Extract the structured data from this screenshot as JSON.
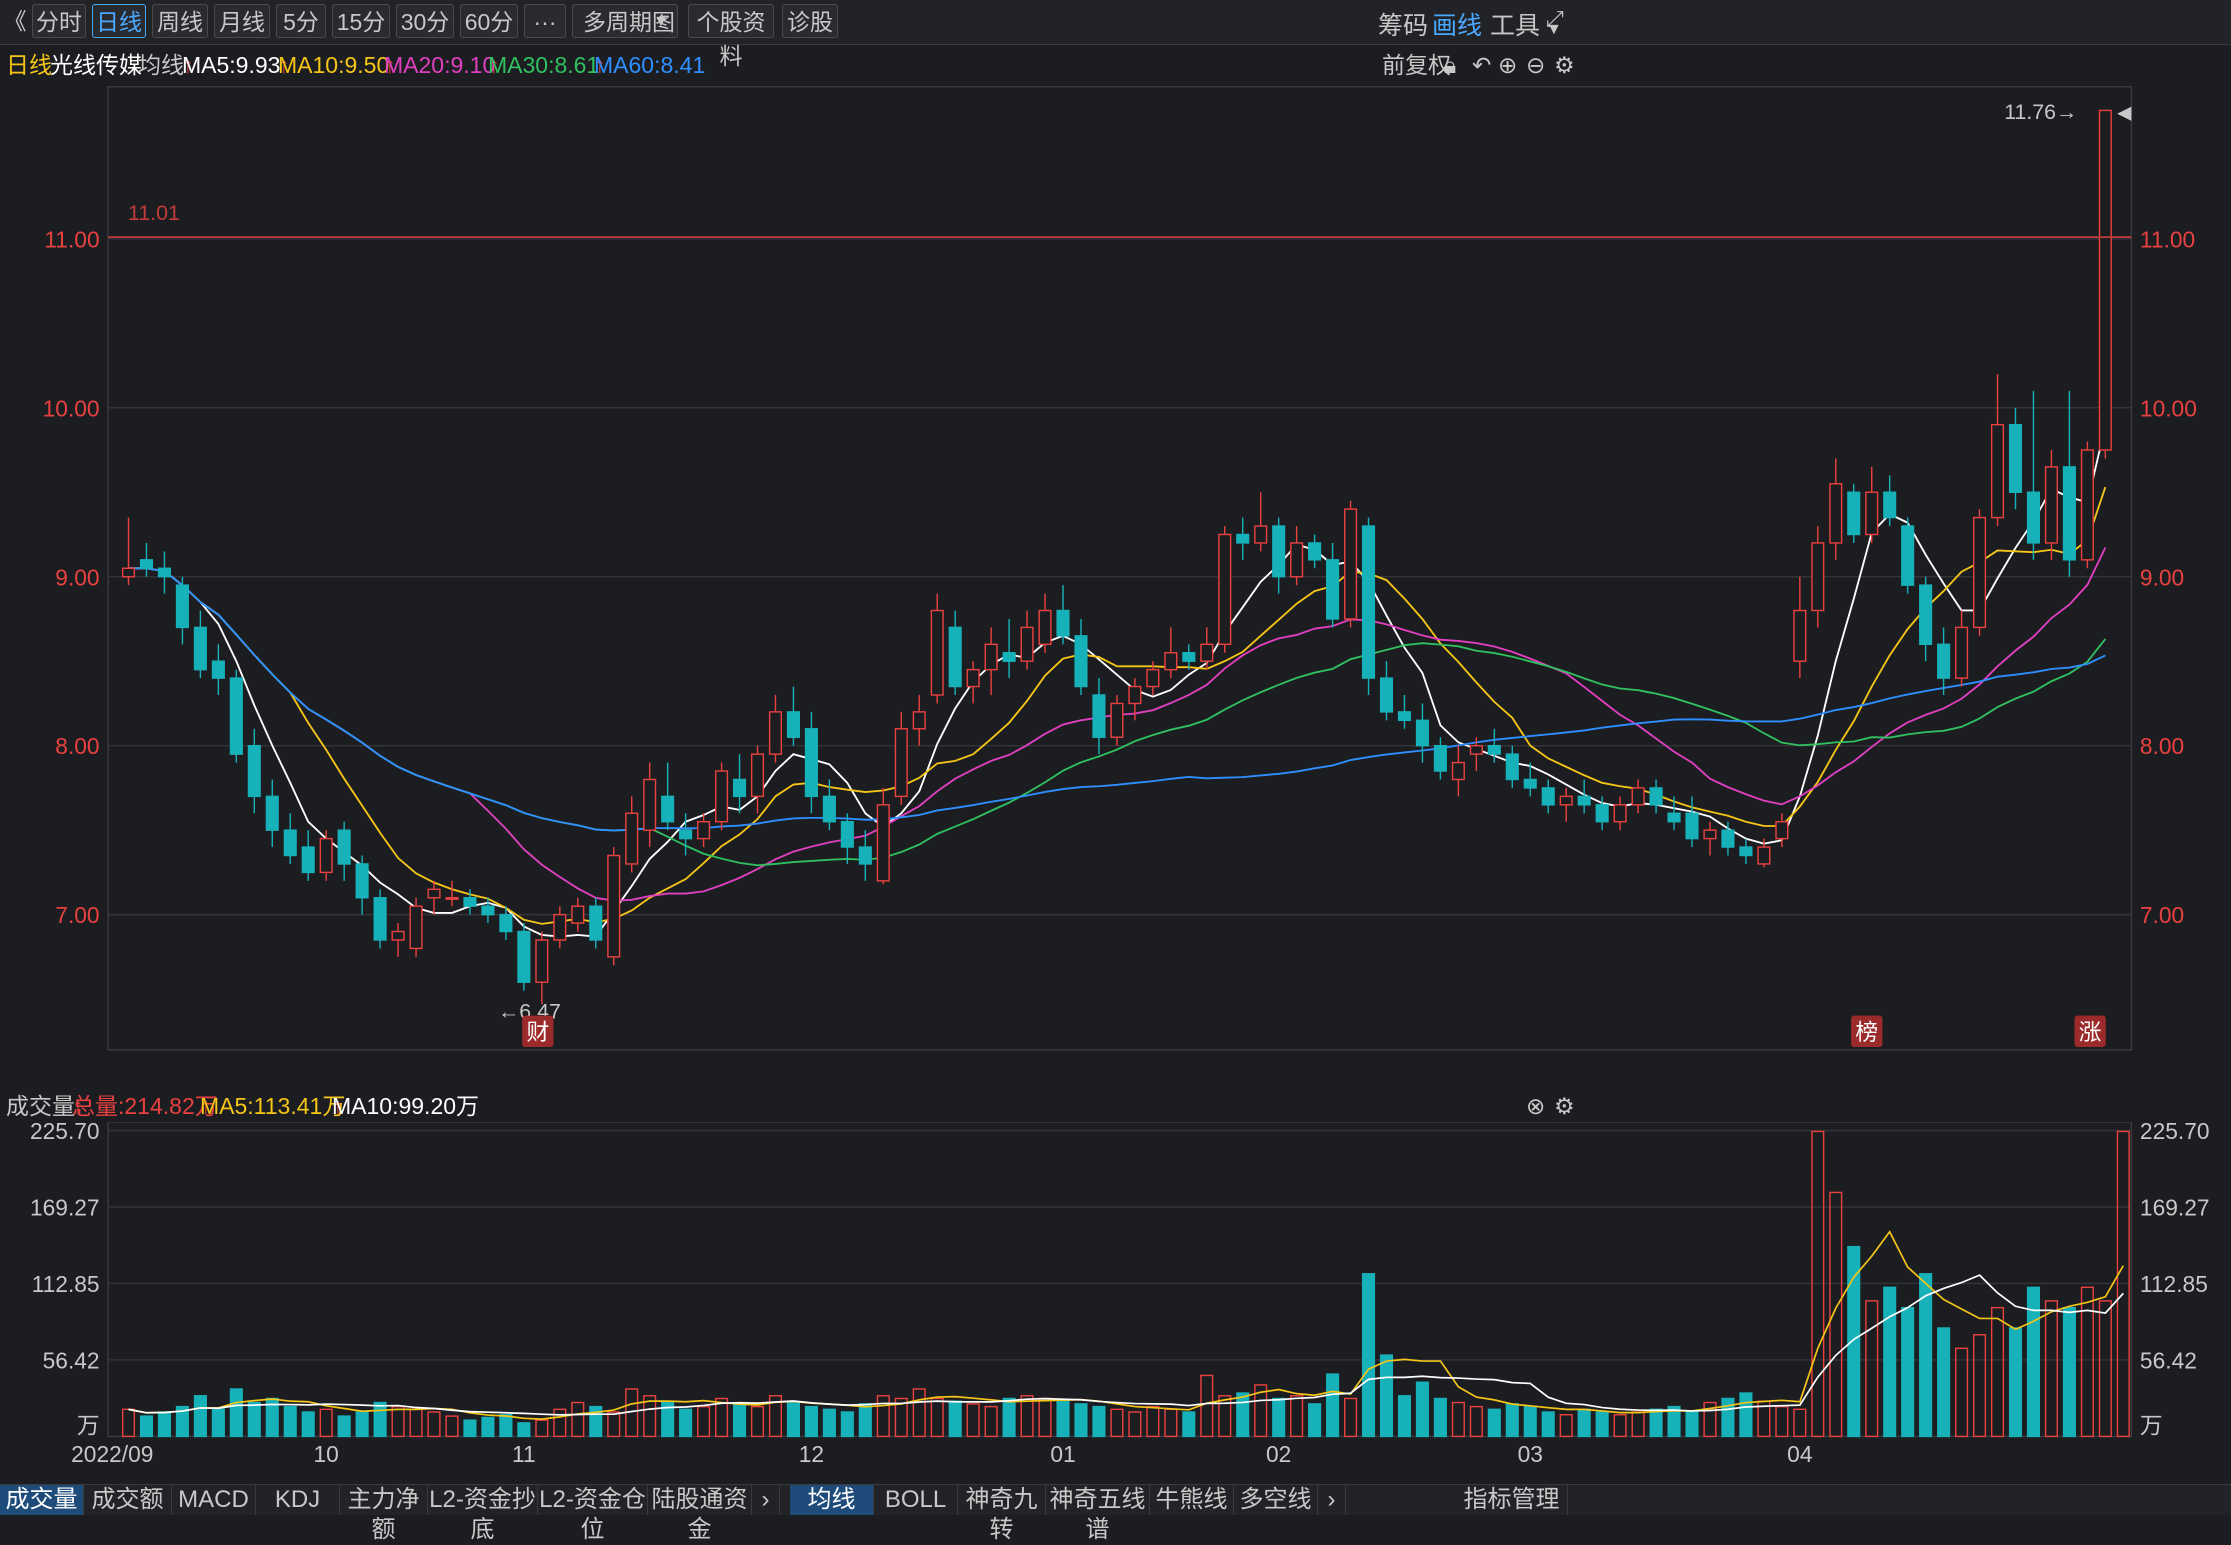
{
  "toolbar": {
    "back_label": "《",
    "buttons": [
      "分时",
      "日线",
      "周线",
      "月线",
      "5分",
      "15分",
      "30分",
      "60分",
      "···",
      "多周期图",
      "个股资料",
      "诊股"
    ],
    "active": "日线",
    "right": [
      "筹码",
      "画线",
      "工具"
    ],
    "right_active": "画线"
  },
  "legend": {
    "period": "日线",
    "stock_name": "光线传媒",
    "indicator": "均线",
    "ma5": "MA5:9.93",
    "ma10": "MA10:9.50",
    "ma20": "MA20:9.10",
    "ma30": "MA30:8.61",
    "ma60": "MA60:8.41",
    "adjust": "前复权"
  },
  "colors": {
    "ma5": "#ffffff",
    "ma10": "#f5c518",
    "ma20": "#e040c0",
    "ma30": "#30c060",
    "ma60": "#2f8fff",
    "up": "#e8413f",
    "down": "#17b1b9",
    "axis": "#e8413f"
  },
  "volume_legend": {
    "title": "成交量",
    "total": "总量:214.82万",
    "ma5": "MA5:113.41万",
    "ma10": "MA10:99.20万"
  },
  "price_axis": [
    "11.00",
    "10.00",
    "9.00",
    "8.00",
    "7.00"
  ],
  "volume_axis": [
    "225.70",
    "169.27",
    "112.85",
    "56.42",
    "万"
  ],
  "x_axis": [
    "2022/09",
    "10",
    "11",
    "12",
    "01",
    "02",
    "03",
    "04"
  ],
  "annotations": {
    "hline_label": "11.01",
    "high_label": "11.76→",
    "low_label": "←6.47",
    "marker_cai": "财",
    "marker_bang": "榜",
    "marker_zhang": "涨"
  },
  "bottom_tabs_left": [
    "成交量",
    "成交额",
    "MACD",
    "KDJ",
    "主力净额",
    "L2-资金抄底",
    "L2-资金仓位",
    "陆股通资金"
  ],
  "bottom_tabs_right": [
    "均线",
    "BOLL",
    "神奇九转",
    "神奇五线谱",
    "牛熊线",
    "多空线",
    "指标管理"
  ],
  "chart_data": {
    "type": "candlestick",
    "xlabel": "",
    "ylabel": "",
    "ylim": [
      6.2,
      11.9
    ],
    "series_ohlc_approx": [
      {
        "open": 9.0,
        "high": 9.35,
        "low": 8.95,
        "close": 9.05
      },
      {
        "open": 9.1,
        "high": 9.2,
        "low": 9.0,
        "close": 9.05
      },
      {
        "open": 9.05,
        "high": 9.15,
        "low": 8.9,
        "close": 9.0
      },
      {
        "open": 8.95,
        "high": 9.0,
        "low": 8.6,
        "close": 8.7
      },
      {
        "open": 8.7,
        "high": 8.8,
        "low": 8.4,
        "close": 8.45
      },
      {
        "open": 8.5,
        "high": 8.6,
        "low": 8.3,
        "close": 8.4
      },
      {
        "open": 8.4,
        "high": 8.45,
        "low": 7.9,
        "close": 7.95
      },
      {
        "open": 8.0,
        "high": 8.1,
        "low": 7.6,
        "close": 7.7
      },
      {
        "open": 7.7,
        "high": 7.8,
        "low": 7.4,
        "close": 7.5
      },
      {
        "open": 7.5,
        "high": 7.6,
        "low": 7.3,
        "close": 7.35
      },
      {
        "open": 7.4,
        "high": 7.5,
        "low": 7.2,
        "close": 7.25
      },
      {
        "open": 7.25,
        "high": 7.5,
        "low": 7.2,
        "close": 7.45
      },
      {
        "open": 7.5,
        "high": 7.55,
        "low": 7.2,
        "close": 7.3
      },
      {
        "open": 7.3,
        "high": 7.35,
        "low": 7.0,
        "close": 7.1
      },
      {
        "open": 7.1,
        "high": 7.15,
        "low": 6.8,
        "close": 6.85
      },
      {
        "open": 6.85,
        "high": 6.95,
        "low": 6.75,
        "close": 6.9
      },
      {
        "open": 6.8,
        "high": 7.1,
        "low": 6.75,
        "close": 7.05
      },
      {
        "open": 7.1,
        "high": 7.2,
        "low": 7.0,
        "close": 7.15
      },
      {
        "open": 7.1,
        "high": 7.2,
        "low": 7.05,
        "close": 7.1
      },
      {
        "open": 7.1,
        "high": 7.15,
        "low": 7.0,
        "close": 7.05
      },
      {
        "open": 7.05,
        "high": 7.1,
        "low": 6.95,
        "close": 7.0
      },
      {
        "open": 7.0,
        "high": 7.05,
        "low": 6.85,
        "close": 6.9
      },
      {
        "open": 6.9,
        "high": 6.95,
        "low": 6.55,
        "close": 6.6
      },
      {
        "open": 6.6,
        "high": 6.9,
        "low": 6.47,
        "close": 6.85
      },
      {
        "open": 6.85,
        "high": 7.05,
        "low": 6.8,
        "close": 7.0
      },
      {
        "open": 6.95,
        "high": 7.1,
        "low": 6.9,
        "close": 7.05
      },
      {
        "open": 7.05,
        "high": 7.1,
        "low": 6.8,
        "close": 6.85
      },
      {
        "open": 6.75,
        "high": 7.4,
        "low": 6.7,
        "close": 7.35
      },
      {
        "open": 7.3,
        "high": 7.7,
        "low": 7.25,
        "close": 7.6
      },
      {
        "open": 7.5,
        "high": 7.9,
        "low": 7.4,
        "close": 7.8
      },
      {
        "open": 7.7,
        "high": 7.9,
        "low": 7.5,
        "close": 7.55
      },
      {
        "open": 7.5,
        "high": 7.6,
        "low": 7.35,
        "close": 7.45
      },
      {
        "open": 7.45,
        "high": 7.6,
        "low": 7.4,
        "close": 7.55
      },
      {
        "open": 7.55,
        "high": 7.9,
        "low": 7.5,
        "close": 7.85
      },
      {
        "open": 7.8,
        "high": 7.95,
        "low": 7.6,
        "close": 7.7
      },
      {
        "open": 7.7,
        "high": 8.0,
        "low": 7.6,
        "close": 7.95
      },
      {
        "open": 7.95,
        "high": 8.3,
        "low": 7.9,
        "close": 8.2
      },
      {
        "open": 8.2,
        "high": 8.35,
        "low": 8.0,
        "close": 8.05
      },
      {
        "open": 8.1,
        "high": 8.2,
        "low": 7.6,
        "close": 7.7
      },
      {
        "open": 7.7,
        "high": 7.8,
        "low": 7.5,
        "close": 7.55
      },
      {
        "open": 7.55,
        "high": 7.6,
        "low": 7.3,
        "close": 7.4
      },
      {
        "open": 7.4,
        "high": 7.5,
        "low": 7.2,
        "close": 7.3
      },
      {
        "open": 7.2,
        "high": 7.75,
        "low": 7.18,
        "close": 7.65
      },
      {
        "open": 7.7,
        "high": 8.2,
        "low": 7.65,
        "close": 8.1
      },
      {
        "open": 8.1,
        "high": 8.3,
        "low": 8.0,
        "close": 8.2
      },
      {
        "open": 8.3,
        "high": 8.9,
        "low": 8.25,
        "close": 8.8
      },
      {
        "open": 8.7,
        "high": 8.8,
        "low": 8.3,
        "close": 8.35
      },
      {
        "open": 8.35,
        "high": 8.5,
        "low": 8.25,
        "close": 8.45
      },
      {
        "open": 8.45,
        "high": 8.7,
        "low": 8.3,
        "close": 8.6
      },
      {
        "open": 8.55,
        "high": 8.75,
        "low": 8.4,
        "close": 8.5
      },
      {
        "open": 8.5,
        "high": 8.8,
        "low": 8.45,
        "close": 8.7
      },
      {
        "open": 8.6,
        "high": 8.9,
        "low": 8.55,
        "close": 8.8
      },
      {
        "open": 8.8,
        "high": 8.95,
        "low": 8.6,
        "close": 8.65
      },
      {
        "open": 8.65,
        "high": 8.75,
        "low": 8.3,
        "close": 8.35
      },
      {
        "open": 8.3,
        "high": 8.4,
        "low": 7.95,
        "close": 8.05
      },
      {
        "open": 8.05,
        "high": 8.3,
        "low": 8.0,
        "close": 8.25
      },
      {
        "open": 8.25,
        "high": 8.4,
        "low": 8.15,
        "close": 8.35
      },
      {
        "open": 8.35,
        "high": 8.5,
        "low": 8.3,
        "close": 8.45
      },
      {
        "open": 8.45,
        "high": 8.7,
        "low": 8.4,
        "close": 8.55
      },
      {
        "open": 8.55,
        "high": 8.6,
        "low": 8.45,
        "close": 8.5
      },
      {
        "open": 8.5,
        "high": 8.7,
        "low": 8.45,
        "close": 8.6
      },
      {
        "open": 8.6,
        "high": 9.3,
        "low": 8.55,
        "close": 9.25
      },
      {
        "open": 9.25,
        "high": 9.35,
        "low": 9.1,
        "close": 9.2
      },
      {
        "open": 9.2,
        "high": 9.5,
        "low": 9.15,
        "close": 9.3
      },
      {
        "open": 9.3,
        "high": 9.35,
        "low": 8.9,
        "close": 9.0
      },
      {
        "open": 9.0,
        "high": 9.3,
        "low": 8.95,
        "close": 9.2
      },
      {
        "open": 9.2,
        "high": 9.25,
        "low": 9.05,
        "close": 9.1
      },
      {
        "open": 9.1,
        "high": 9.2,
        "low": 8.7,
        "close": 8.75
      },
      {
        "open": 8.75,
        "high": 9.45,
        "low": 8.7,
        "close": 9.4
      },
      {
        "open": 9.3,
        "high": 9.35,
        "low": 8.3,
        "close": 8.4
      },
      {
        "open": 8.4,
        "high": 8.5,
        "low": 8.15,
        "close": 8.2
      },
      {
        "open": 8.2,
        "high": 8.3,
        "low": 8.1,
        "close": 8.15
      },
      {
        "open": 8.15,
        "high": 8.25,
        "low": 7.9,
        "close": 8.0
      },
      {
        "open": 8.0,
        "high": 8.05,
        "low": 7.8,
        "close": 7.85
      },
      {
        "open": 7.8,
        "high": 8.0,
        "low": 7.7,
        "close": 7.9
      },
      {
        "open": 7.95,
        "high": 8.05,
        "low": 7.85,
        "close": 8.0
      },
      {
        "open": 8.0,
        "high": 8.1,
        "low": 7.9,
        "close": 7.95
      },
      {
        "open": 7.95,
        "high": 8.0,
        "low": 7.75,
        "close": 7.8
      },
      {
        "open": 7.8,
        "high": 7.9,
        "low": 7.7,
        "close": 7.75
      },
      {
        "open": 7.75,
        "high": 7.8,
        "low": 7.6,
        "close": 7.65
      },
      {
        "open": 7.65,
        "high": 7.75,
        "low": 7.55,
        "close": 7.7
      },
      {
        "open": 7.7,
        "high": 7.8,
        "low": 7.6,
        "close": 7.65
      },
      {
        "open": 7.65,
        "high": 7.7,
        "low": 7.5,
        "close": 7.55
      },
      {
        "open": 7.55,
        "high": 7.7,
        "low": 7.5,
        "close": 7.65
      },
      {
        "open": 7.65,
        "high": 7.8,
        "low": 7.6,
        "close": 7.75
      },
      {
        "open": 7.75,
        "high": 7.8,
        "low": 7.6,
        "close": 7.65
      },
      {
        "open": 7.6,
        "high": 7.7,
        "low": 7.5,
        "close": 7.55
      },
      {
        "open": 7.6,
        "high": 7.7,
        "low": 7.4,
        "close": 7.45
      },
      {
        "open": 7.45,
        "high": 7.55,
        "low": 7.35,
        "close": 7.5
      },
      {
        "open": 7.5,
        "high": 7.55,
        "low": 7.35,
        "close": 7.4
      },
      {
        "open": 7.4,
        "high": 7.45,
        "low": 7.3,
        "close": 7.35
      },
      {
        "open": 7.3,
        "high": 7.45,
        "low": 7.28,
        "close": 7.4
      },
      {
        "open": 7.45,
        "high": 7.6,
        "low": 7.4,
        "close": 7.55
      },
      {
        "open": 8.5,
        "high": 9.0,
        "low": 8.4,
        "close": 8.8
      },
      {
        "open": 8.8,
        "high": 9.3,
        "low": 8.7,
        "close": 9.2
      },
      {
        "open": 9.2,
        "high": 9.7,
        "low": 9.1,
        "close": 9.55
      },
      {
        "open": 9.5,
        "high": 9.55,
        "low": 9.2,
        "close": 9.25
      },
      {
        "open": 9.25,
        "high": 9.65,
        "low": 9.2,
        "close": 9.5
      },
      {
        "open": 9.5,
        "high": 9.6,
        "low": 9.3,
        "close": 9.35
      },
      {
        "open": 9.3,
        "high": 9.35,
        "low": 8.9,
        "close": 8.95
      },
      {
        "open": 8.95,
        "high": 9.0,
        "low": 8.5,
        "close": 8.6
      },
      {
        "open": 8.6,
        "high": 8.7,
        "low": 8.3,
        "close": 8.4
      },
      {
        "open": 8.4,
        "high": 8.8,
        "low": 8.35,
        "close": 8.7
      },
      {
        "open": 8.7,
        "high": 9.4,
        "low": 8.65,
        "close": 9.35
      },
      {
        "open": 9.35,
        "high": 10.2,
        "low": 9.3,
        "close": 9.9
      },
      {
        "open": 9.9,
        "high": 10.0,
        "low": 9.4,
        "close": 9.5
      },
      {
        "open": 9.5,
        "high": 10.1,
        "low": 9.1,
        "close": 9.2
      },
      {
        "open": 9.2,
        "high": 9.75,
        "low": 9.1,
        "close": 9.65
      },
      {
        "open": 9.65,
        "high": 10.1,
        "low": 9.0,
        "close": 9.1
      },
      {
        "open": 9.1,
        "high": 9.8,
        "low": 9.05,
        "close": 9.75
      },
      {
        "open": 9.75,
        "high": 11.76,
        "low": 9.7,
        "close": 11.76
      }
    ],
    "volume_ylim": [
      0,
      225.7
    ],
    "volume_approx": [
      20,
      15,
      18,
      22,
      30,
      20,
      35,
      25,
      28,
      22,
      18,
      20,
      15,
      18,
      25,
      22,
      20,
      18,
      15,
      12,
      14,
      16,
      10,
      12,
      20,
      25,
      22,
      18,
      35,
      30,
      25,
      20,
      22,
      28,
      24,
      22,
      30,
      25,
      22,
      20,
      18,
      24,
      30,
      28,
      35,
      28,
      26,
      24,
      22,
      28,
      30,
      28,
      26,
      24,
      22,
      20,
      18,
      22,
      20,
      18,
      45,
      30,
      32,
      38,
      28,
      30,
      24,
      46,
      28,
      120,
      60,
      30,
      40,
      28,
      25,
      22,
      20,
      24,
      22,
      18,
      16,
      20,
      18,
      16,
      18,
      20,
      22,
      18,
      25,
      28,
      32,
      26,
      22,
      20,
      225,
      180,
      140,
      100,
      110,
      95,
      120,
      80,
      65,
      75,
      95,
      80,
      110,
      100,
      95,
      110,
      100,
      225
    ],
    "ma_labels": [
      "MA5",
      "MA10",
      "MA20",
      "MA30",
      "MA60"
    ]
  }
}
